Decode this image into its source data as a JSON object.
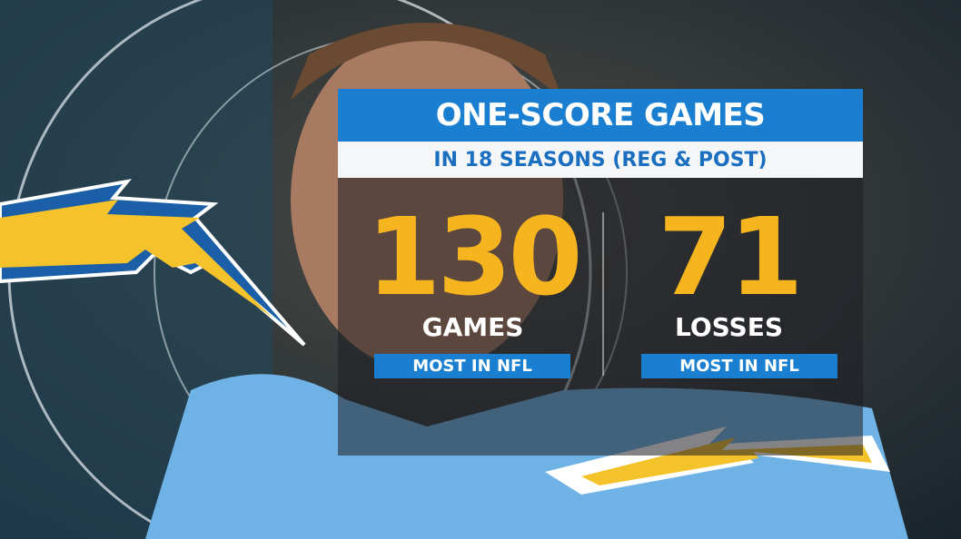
{
  "header": {
    "title": "ONE-SCORE GAMES",
    "subtitle": "IN 18 SEASONS (REG & POST)"
  },
  "stats": [
    {
      "value": 130,
      "label": "GAMES",
      "note": "MOST IN NFL"
    },
    {
      "value": 71,
      "label": "LOSSES",
      "note": "MOST IN NFL"
    }
  ]
}
